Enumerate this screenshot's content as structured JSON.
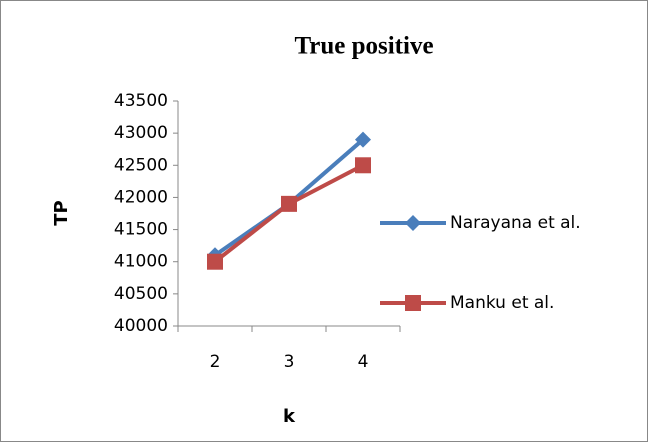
{
  "chart_data": {
    "type": "line",
    "title": "True positive",
    "x_label": "k",
    "y_label": "TP",
    "categories": [
      "2",
      "3",
      "4"
    ],
    "series": [
      {
        "name": "Narayana et al.",
        "color": "#4a7ebb",
        "marker": "diamond",
        "values": [
          41100,
          41900,
          42900
        ]
      },
      {
        "name": "Manku et al.",
        "color": "#be4b48",
        "marker": "square",
        "values": [
          41000,
          41900,
          42500
        ]
      }
    ],
    "ylim": [
      40000,
      43500
    ],
    "yticks": [
      40000,
      40500,
      41000,
      41500,
      42000,
      42500,
      43000,
      43500
    ],
    "legend": "right",
    "grid": false
  }
}
